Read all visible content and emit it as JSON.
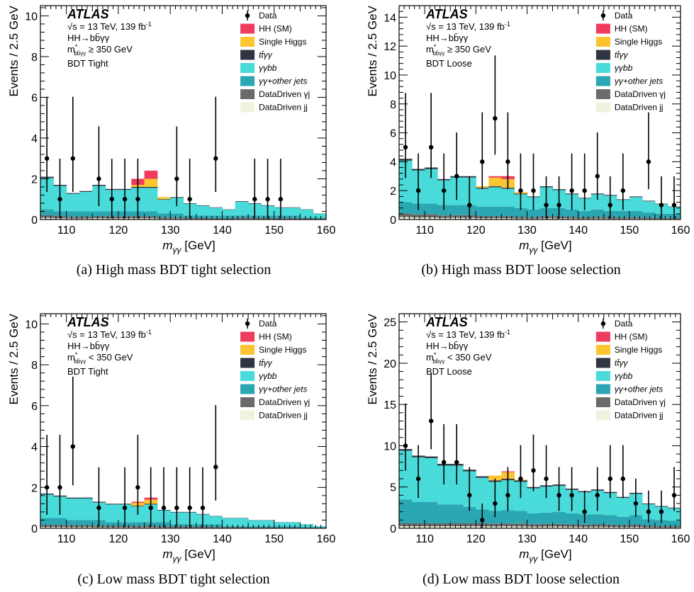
{
  "colors": {
    "hh": "#ef3b5d",
    "single_higgs": "#fbc531",
    "ttyy": "#2f3542",
    "yybb": "#48dbd9",
    "yy_other": "#2aa7b3",
    "dd_yj": "#6b6b6b",
    "dd_jj": "#f1f2de"
  },
  "panels": [
    {
      "caption": "(a) High mass BDT tight selection",
      "ylabel": "Events / 2.5 GeV",
      "xlabel_main": "m",
      "xlabel_sub": "γγ",
      "xlabel_unit": " [GeV]",
      "atlas": "ATLAS",
      "info1": "√s = 13 TeV, 139 fb",
      "info1_sup": "-1",
      "info2": "HH→bb̄γγ",
      "info3_main": "m",
      "info3_sup": "*",
      "info3_sub": "bb̄γγ",
      "info3_rest": " ≥ 350 GeV",
      "info4": "BDT Tight",
      "legend": [
        "Data",
        "HH (SM)",
        "Single Higgs",
        "tt̄γγ",
        "γγbb",
        "γγ+other jets",
        "DataDriven γj",
        "DataDriven jj"
      ],
      "chart_data": {
        "type": "bar",
        "xlim": [
          105,
          160
        ],
        "ylim": [
          0,
          10.5
        ],
        "x_ticks": [
          110,
          120,
          130,
          140,
          150,
          160
        ],
        "y_ticks": [
          0,
          2,
          4,
          6,
          8,
          10
        ],
        "bin_edges": [
          105,
          107.5,
          110,
          112.5,
          115,
          117.5,
          120,
          122.5,
          125,
          127.5,
          130,
          132.5,
          135,
          137.5,
          140,
          142.5,
          145,
          147.5,
          150,
          152.5,
          155,
          157.5,
          160
        ],
        "stack_total_bkg": [
          2.1,
          1.7,
          1.3,
          1.4,
          1.7,
          1.5,
          1.5,
          1.6,
          1.6,
          1.0,
          1.1,
          0.8,
          0.7,
          0.6,
          0.5,
          0.9,
          0.8,
          0.7,
          0.6,
          0.6,
          0.5,
          0.3
        ],
        "yy_other": [
          0.5,
          0.4,
          0.4,
          0.4,
          0.4,
          0.4,
          0.4,
          0.4,
          0.4,
          0.3,
          0.3,
          0.2,
          0.2,
          0.2,
          0.2,
          0.2,
          0.2,
          0.2,
          0.2,
          0.2,
          0.1,
          0.1
        ],
        "single_higgs": [
          0,
          0,
          0,
          0,
          0,
          0,
          0,
          0.1,
          0.4,
          0.1,
          0,
          0,
          0,
          0,
          0,
          0,
          0,
          0,
          0,
          0,
          0,
          0
        ],
        "hh_sm": [
          0,
          0,
          0,
          0,
          0,
          0,
          0,
          0.3,
          0.4,
          0,
          0,
          0,
          0,
          0,
          0,
          0,
          0,
          0,
          0,
          0,
          0,
          0
        ],
        "data": [
          {
            "x": 106.25,
            "y": 3
          },
          {
            "x": 108.75,
            "y": 1
          },
          {
            "x": 111.25,
            "y": 3
          },
          {
            "x": 116.25,
            "y": 2
          },
          {
            "x": 118.75,
            "y": 1
          },
          {
            "x": 121.25,
            "y": 1
          },
          {
            "x": 123.75,
            "y": 1
          },
          {
            "x": 131.25,
            "y": 2
          },
          {
            "x": 133.75,
            "y": 1
          },
          {
            "x": 138.75,
            "y": 3
          },
          {
            "x": 146.25,
            "y": 1
          },
          {
            "x": 148.75,
            "y": 1
          },
          {
            "x": 151.25,
            "y": 1
          }
        ]
      }
    },
    {
      "caption": "(b) High mass BDT loose selection",
      "ylabel": "Events / 2.5 GeV",
      "xlabel_main": "m",
      "xlabel_sub": "γγ",
      "xlabel_unit": " [GeV]",
      "atlas": "ATLAS",
      "info1": "√s = 13 TeV, 139 fb",
      "info1_sup": "-1",
      "info2": "HH→bb̄γγ",
      "info3_main": "m",
      "info3_sup": "*",
      "info3_sub": "bb̄γγ",
      "info3_rest": " ≥ 350 GeV",
      "info4": "BDT Loose",
      "legend": [
        "Data",
        "HH (SM)",
        "Single Higgs",
        "tt̄γγ",
        "γγbb",
        "γγ+other jets",
        "DataDriven γj",
        "DataDriven jj"
      ],
      "chart_data": {
        "type": "bar",
        "xlim": [
          105,
          160
        ],
        "ylim": [
          0,
          14.8
        ],
        "x_ticks": [
          110,
          120,
          130,
          140,
          150,
          160
        ],
        "y_ticks": [
          0,
          2,
          4,
          6,
          8,
          10,
          12,
          14
        ],
        "bin_edges": [
          105,
          107.5,
          110,
          112.5,
          115,
          117.5,
          120,
          122.5,
          125,
          127.5,
          130,
          132.5,
          135,
          137.5,
          140,
          142.5,
          145,
          147.5,
          150,
          152.5,
          155,
          157.5,
          160
        ],
        "stack_total_bkg": [
          4.2,
          3.5,
          3.6,
          2.8,
          3.0,
          3.0,
          2.2,
          2.3,
          2.2,
          1.8,
          1.6,
          2.3,
          2.1,
          1.8,
          1.5,
          1.8,
          1.7,
          1.4,
          1.6,
          1.3,
          1.1,
          0.9
        ],
        "yy_other": [
          1.2,
          1.1,
          1.1,
          1.0,
          1.0,
          1.0,
          0.9,
          0.9,
          0.9,
          0.8,
          0.7,
          0.8,
          0.8,
          0.7,
          0.6,
          0.7,
          0.6,
          0.6,
          0.6,
          0.5,
          0.4,
          0.4
        ],
        "single_higgs": [
          0,
          0,
          0,
          0,
          0,
          0,
          0.1,
          0.6,
          0.6,
          0.1,
          0,
          0,
          0,
          0,
          0,
          0,
          0,
          0,
          0,
          0,
          0,
          0
        ],
        "hh_sm": [
          0,
          0,
          0,
          0,
          0,
          0,
          0,
          0.1,
          0.2,
          0,
          0,
          0,
          0,
          0,
          0,
          0,
          0,
          0,
          0,
          0,
          0,
          0
        ],
        "data": [
          {
            "x": 106.25,
            "y": 5
          },
          {
            "x": 108.75,
            "y": 2
          },
          {
            "x": 111.25,
            "y": 5
          },
          {
            "x": 113.75,
            "y": 2
          },
          {
            "x": 116.25,
            "y": 3
          },
          {
            "x": 118.75,
            "y": 1
          },
          {
            "x": 121.25,
            "y": 4
          },
          {
            "x": 123.75,
            "y": 7
          },
          {
            "x": 126.25,
            "y": 4
          },
          {
            "x": 128.75,
            "y": 2
          },
          {
            "x": 131.25,
            "y": 2
          },
          {
            "x": 133.75,
            "y": 1
          },
          {
            "x": 136.25,
            "y": 1
          },
          {
            "x": 138.75,
            "y": 2
          },
          {
            "x": 141.25,
            "y": 2
          },
          {
            "x": 143.75,
            "y": 3
          },
          {
            "x": 146.25,
            "y": 1
          },
          {
            "x": 148.75,
            "y": 2
          },
          {
            "x": 153.75,
            "y": 4
          },
          {
            "x": 156.25,
            "y": 1
          },
          {
            "x": 158.75,
            "y": 1
          }
        ]
      }
    },
    {
      "caption": "(c) Low mass BDT tight selection",
      "ylabel": "Events / 2.5 GeV",
      "xlabel_main": "m",
      "xlabel_sub": "γγ",
      "xlabel_unit": " [GeV]",
      "atlas": "ATLAS",
      "info1": "√s = 13 TeV, 139 fb",
      "info1_sup": "-1",
      "info2": "HH→bb̄γγ",
      "info3_main": "m",
      "info3_sup": "*",
      "info3_sub": "bb̄γγ",
      "info3_rest": " < 350 GeV",
      "info4": "BDT Tight",
      "legend": [
        "Data",
        "HH (SM)",
        "Single Higgs",
        "tt̄γγ",
        "γγbb",
        "γγ+other jets",
        "DataDriven γj",
        "DataDriven jj"
      ],
      "chart_data": {
        "type": "bar",
        "xlim": [
          105,
          160
        ],
        "ylim": [
          0,
          10.5
        ],
        "x_ticks": [
          110,
          120,
          130,
          140,
          150,
          160
        ],
        "y_ticks": [
          0,
          2,
          4,
          6,
          8,
          10
        ],
        "bin_edges": [
          105,
          107.5,
          110,
          112.5,
          115,
          117.5,
          120,
          122.5,
          125,
          127.5,
          130,
          132.5,
          135,
          137.5,
          140,
          142.5,
          145,
          147.5,
          150,
          152.5,
          155,
          157.5,
          160
        ],
        "stack_total_bkg": [
          1.7,
          1.6,
          1.5,
          1.5,
          1.3,
          1.2,
          1.2,
          1.1,
          1.2,
          0.9,
          0.8,
          0.8,
          0.7,
          0.6,
          0.5,
          0.5,
          0.4,
          0.4,
          0.3,
          0.3,
          0.2,
          0.1
        ],
        "yy_other": [
          0.5,
          0.5,
          0.4,
          0.4,
          0.4,
          0.3,
          0.3,
          0.3,
          0.3,
          0.3,
          0.2,
          0.2,
          0.2,
          0.2,
          0.1,
          0.1,
          0.1,
          0.1,
          0.1,
          0.1,
          0.05,
          0.05
        ],
        "single_higgs": [
          0,
          0,
          0,
          0,
          0,
          0,
          0,
          0.15,
          0.2,
          0,
          0,
          0,
          0,
          0,
          0,
          0,
          0,
          0,
          0,
          0,
          0,
          0
        ],
        "hh_sm": [
          0,
          0,
          0,
          0,
          0,
          0,
          0,
          0.05,
          0.1,
          0,
          0,
          0,
          0,
          0,
          0,
          0,
          0,
          0,
          0,
          0,
          0,
          0
        ],
        "data": [
          {
            "x": 106.25,
            "y": 2
          },
          {
            "x": 108.75,
            "y": 2
          },
          {
            "x": 111.25,
            "y": 4
          },
          {
            "x": 116.25,
            "y": 1
          },
          {
            "x": 121.25,
            "y": 1
          },
          {
            "x": 123.75,
            "y": 2
          },
          {
            "x": 126.25,
            "y": 1
          },
          {
            "x": 128.75,
            "y": 1
          },
          {
            "x": 131.25,
            "y": 1
          },
          {
            "x": 133.75,
            "y": 1
          },
          {
            "x": 136.25,
            "y": 1
          },
          {
            "x": 138.75,
            "y": 3
          }
        ]
      }
    },
    {
      "caption": "(d) Low mass BDT loose selection",
      "ylabel": "Events / 2.5 GeV",
      "xlabel_main": "m",
      "xlabel_sub": "γγ",
      "xlabel_unit": " [GeV]",
      "atlas": "ATLAS",
      "info1": "√s = 13 TeV, 139 fb",
      "info1_sup": "-1",
      "info2": "HH→bb̄γγ",
      "info3_main": "m",
      "info3_sup": "*",
      "info3_sub": "bb̄γγ",
      "info3_rest": " < 350 GeV",
      "info4": "BDT Loose",
      "legend": [
        "Data",
        "HH (SM)",
        "Single Higgs",
        "tt̄γγ",
        "γγbb",
        "γγ+other jets",
        "DataDriven γj",
        "DataDriven jj"
      ],
      "chart_data": {
        "type": "bar",
        "xlim": [
          105,
          160
        ],
        "ylim": [
          0,
          26
        ],
        "x_ticks": [
          110,
          120,
          130,
          140,
          150,
          160
        ],
        "y_ticks": [
          0,
          5,
          10,
          15,
          20,
          25
        ],
        "bin_edges": [
          105,
          107.5,
          110,
          112.5,
          115,
          117.5,
          120,
          122.5,
          125,
          127.5,
          130,
          132.5,
          135,
          137.5,
          140,
          142.5,
          145,
          147.5,
          150,
          152.5,
          155,
          157.5,
          160
        ],
        "stack_total_bkg": [
          9.6,
          8.8,
          8.7,
          7.8,
          7.8,
          7.1,
          6.3,
          5.8,
          6.0,
          5.8,
          5.0,
          5.2,
          5.3,
          4.8,
          4.5,
          4.7,
          4.4,
          3.8,
          4.3,
          3.0,
          2.7,
          2.5
        ],
        "yy_other": [
          3.5,
          3.2,
          3.2,
          2.9,
          2.9,
          2.6,
          2.3,
          2.1,
          2.2,
          2.1,
          1.8,
          1.9,
          2.0,
          1.8,
          1.7,
          1.7,
          1.6,
          1.4,
          1.6,
          1.1,
          1.0,
          0.9
        ],
        "single_higgs": [
          0,
          0,
          0,
          0,
          0,
          0,
          0,
          0.6,
          0.8,
          0.1,
          0,
          0,
          0,
          0,
          0,
          0,
          0,
          0,
          0,
          0,
          0,
          0
        ],
        "hh_sm": [
          0,
          0,
          0,
          0,
          0,
          0,
          0,
          0,
          0.1,
          0,
          0,
          0,
          0,
          0,
          0,
          0,
          0,
          0,
          0,
          0,
          0,
          0
        ],
        "data": [
          {
            "x": 106.25,
            "y": 10
          },
          {
            "x": 108.75,
            "y": 6
          },
          {
            "x": 111.25,
            "y": 13
          },
          {
            "x": 113.75,
            "y": 8
          },
          {
            "x": 116.25,
            "y": 8
          },
          {
            "x": 118.75,
            "y": 4
          },
          {
            "x": 121.25,
            "y": 1
          },
          {
            "x": 123.75,
            "y": 3
          },
          {
            "x": 126.25,
            "y": 4
          },
          {
            "x": 128.75,
            "y": 6
          },
          {
            "x": 131.25,
            "y": 7
          },
          {
            "x": 133.75,
            "y": 6
          },
          {
            "x": 136.25,
            "y": 4
          },
          {
            "x": 138.75,
            "y": 4
          },
          {
            "x": 141.25,
            "y": 2
          },
          {
            "x": 143.75,
            "y": 4
          },
          {
            "x": 146.25,
            "y": 6
          },
          {
            "x": 148.75,
            "y": 6
          },
          {
            "x": 151.25,
            "y": 3
          },
          {
            "x": 153.75,
            "y": 2
          },
          {
            "x": 156.25,
            "y": 2
          },
          {
            "x": 158.75,
            "y": 4
          }
        ]
      }
    }
  ]
}
